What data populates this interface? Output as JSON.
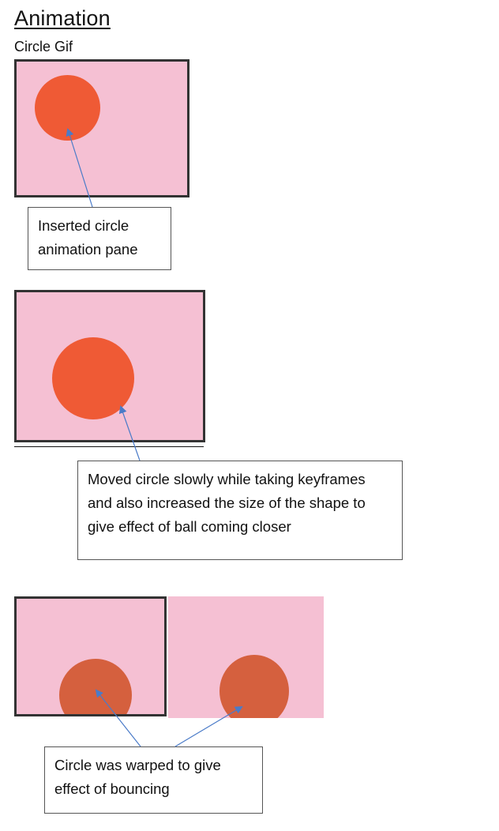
{
  "page": {
    "title": "Animation",
    "subtitle": "Circle Gif"
  },
  "colors": {
    "frame_background": "#f5c0d3",
    "ball_primary": "#ef5a35",
    "ball_warped": "#d5603e",
    "arrow": "#4a7bc8",
    "border": "#333333"
  },
  "sections": [
    {
      "callout_text": "Inserted circle animation pane"
    },
    {
      "callout_text": "Moved circle slowly while taking keyframes and also increased the size of the shape to give effect of ball coming closer"
    },
    {
      "callout_text": "Circle was warped to give effect of bouncing"
    }
  ]
}
